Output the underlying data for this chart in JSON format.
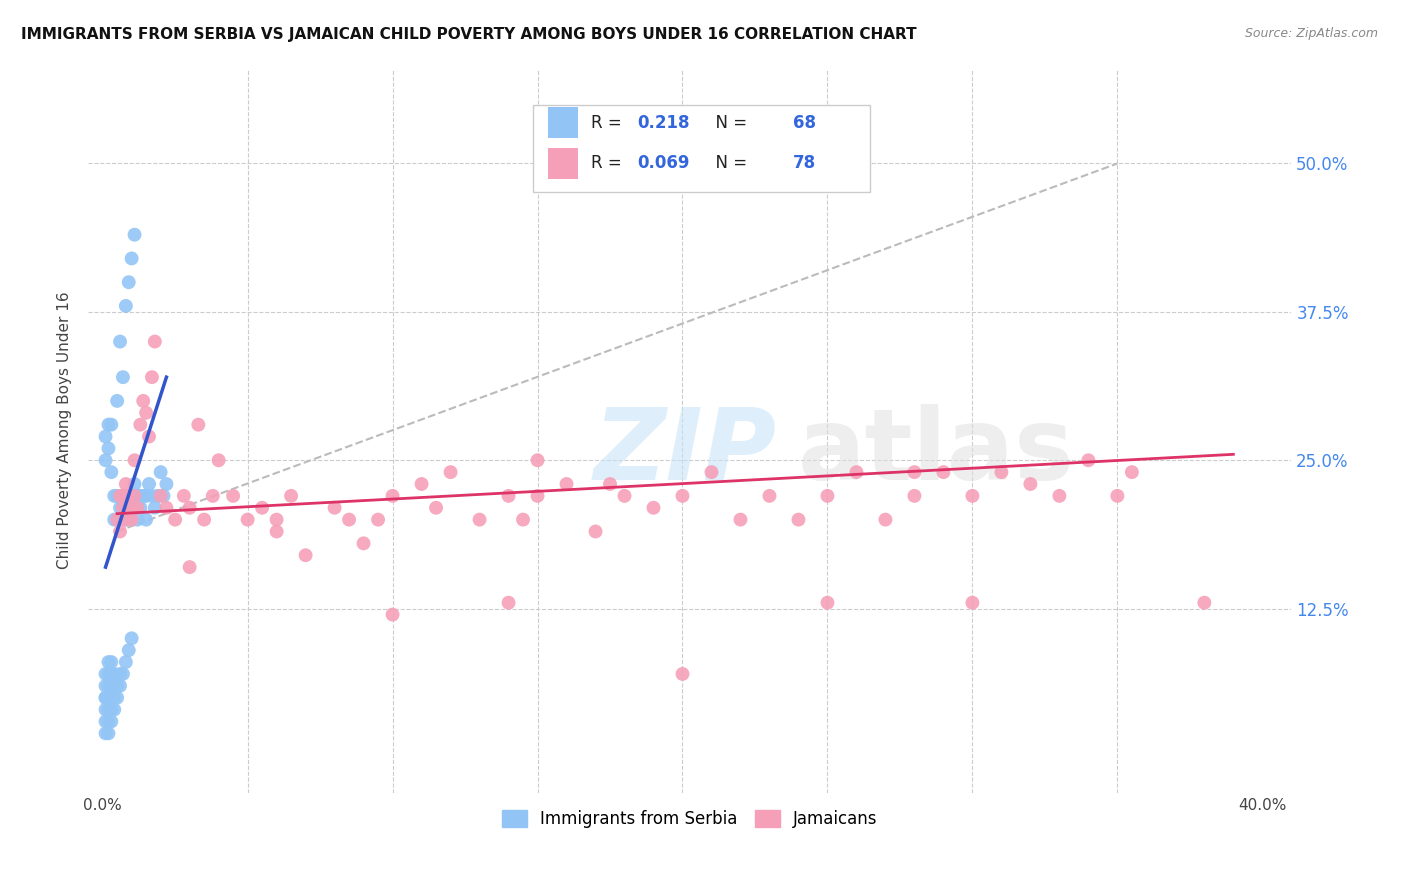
{
  "title": "IMMIGRANTS FROM SERBIA VS JAMAICAN CHILD POVERTY AMONG BOYS UNDER 16 CORRELATION CHART",
  "source": "Source: ZipAtlas.com",
  "ylabel": "Child Poverty Among Boys Under 16",
  "xlim": [
    -0.005,
    0.41
  ],
  "ylim": [
    -0.03,
    0.58
  ],
  "yticks": [
    0.125,
    0.25,
    0.375,
    0.5
  ],
  "ytick_labels": [
    "12.5%",
    "25.0%",
    "37.5%",
    "50.0%"
  ],
  "xticks": [
    0.0,
    0.05,
    0.1,
    0.15,
    0.2,
    0.25,
    0.3,
    0.35,
    0.4
  ],
  "xtick_labels": [
    "0.0%",
    "",
    "",
    "",
    "",
    "",
    "",
    "",
    "40.0%"
  ],
  "legend_R1": "0.218",
  "legend_N1": "68",
  "legend_R2": "0.069",
  "legend_N2": "78",
  "legend_label1": "Immigrants from Serbia",
  "legend_label2": "Jamaicans",
  "blue_color": "#92C5F5",
  "pink_color": "#F5A0B8",
  "blue_line_color": "#3355CC",
  "pink_line_color": "#DD3366",
  "grid_color": "#CCCCCC",
  "serbia_x": [
    0.001,
    0.001,
    0.001,
    0.001,
    0.001,
    0.001,
    0.001,
    0.002,
    0.002,
    0.002,
    0.002,
    0.002,
    0.002,
    0.002,
    0.003,
    0.003,
    0.003,
    0.003,
    0.003,
    0.004,
    0.004,
    0.004,
    0.004,
    0.005,
    0.005,
    0.005,
    0.006,
    0.006,
    0.006,
    0.007,
    0.007,
    0.008,
    0.008,
    0.008,
    0.009,
    0.009,
    0.01,
    0.01,
    0.011,
    0.011,
    0.012,
    0.012,
    0.013,
    0.013,
    0.014,
    0.015,
    0.015,
    0.016,
    0.017,
    0.018,
    0.019,
    0.02,
    0.021,
    0.022,
    0.001,
    0.001,
    0.002,
    0.002,
    0.003,
    0.003,
    0.004,
    0.005,
    0.006,
    0.007,
    0.008,
    0.009,
    0.01,
    0.011
  ],
  "serbia_y": [
    0.02,
    0.03,
    0.04,
    0.05,
    0.05,
    0.06,
    0.07,
    0.02,
    0.03,
    0.04,
    0.05,
    0.06,
    0.07,
    0.08,
    0.03,
    0.04,
    0.06,
    0.07,
    0.08,
    0.04,
    0.05,
    0.07,
    0.2,
    0.05,
    0.06,
    0.22,
    0.06,
    0.07,
    0.21,
    0.07,
    0.22,
    0.08,
    0.2,
    0.22,
    0.09,
    0.21,
    0.1,
    0.22,
    0.21,
    0.23,
    0.2,
    0.22,
    0.21,
    0.22,
    0.22,
    0.2,
    0.22,
    0.23,
    0.22,
    0.21,
    0.22,
    0.24,
    0.22,
    0.23,
    0.25,
    0.27,
    0.26,
    0.28,
    0.24,
    0.28,
    0.22,
    0.3,
    0.35,
    0.32,
    0.38,
    0.4,
    0.42,
    0.44
  ],
  "jamaica_x": [
    0.005,
    0.006,
    0.006,
    0.007,
    0.007,
    0.008,
    0.008,
    0.009,
    0.01,
    0.01,
    0.011,
    0.011,
    0.012,
    0.013,
    0.014,
    0.015,
    0.016,
    0.017,
    0.018,
    0.02,
    0.022,
    0.025,
    0.028,
    0.03,
    0.033,
    0.035,
    0.038,
    0.04,
    0.045,
    0.05,
    0.055,
    0.06,
    0.065,
    0.07,
    0.08,
    0.085,
    0.09,
    0.095,
    0.1,
    0.11,
    0.115,
    0.12,
    0.13,
    0.14,
    0.145,
    0.15,
    0.16,
    0.17,
    0.175,
    0.18,
    0.19,
    0.2,
    0.21,
    0.22,
    0.23,
    0.24,
    0.25,
    0.26,
    0.27,
    0.28,
    0.29,
    0.3,
    0.31,
    0.32,
    0.33,
    0.34,
    0.35,
    0.355,
    0.14,
    0.25,
    0.3,
    0.38,
    0.03,
    0.06,
    0.1,
    0.15,
    0.2,
    0.28
  ],
  "jamaica_y": [
    0.2,
    0.22,
    0.19,
    0.22,
    0.21,
    0.2,
    0.23,
    0.22,
    0.21,
    0.2,
    0.25,
    0.22,
    0.21,
    0.28,
    0.3,
    0.29,
    0.27,
    0.32,
    0.35,
    0.22,
    0.21,
    0.2,
    0.22,
    0.21,
    0.28,
    0.2,
    0.22,
    0.25,
    0.22,
    0.2,
    0.21,
    0.19,
    0.22,
    0.17,
    0.21,
    0.2,
    0.18,
    0.2,
    0.22,
    0.23,
    0.21,
    0.24,
    0.2,
    0.22,
    0.2,
    0.22,
    0.23,
    0.19,
    0.23,
    0.22,
    0.21,
    0.22,
    0.24,
    0.2,
    0.22,
    0.2,
    0.22,
    0.24,
    0.2,
    0.22,
    0.24,
    0.22,
    0.24,
    0.23,
    0.22,
    0.25,
    0.22,
    0.24,
    0.13,
    0.13,
    0.13,
    0.13,
    0.16,
    0.2,
    0.12,
    0.25,
    0.07,
    0.24
  ],
  "diag_line_x": [
    0.005,
    0.35
  ],
  "diag_line_y": [
    0.19,
    0.5
  ],
  "serbia_line_x": [
    0.001,
    0.022
  ],
  "serbia_line_y": [
    0.16,
    0.32
  ],
  "jamaica_line_x": [
    0.005,
    0.39
  ],
  "jamaica_line_y": [
    0.205,
    0.255
  ]
}
